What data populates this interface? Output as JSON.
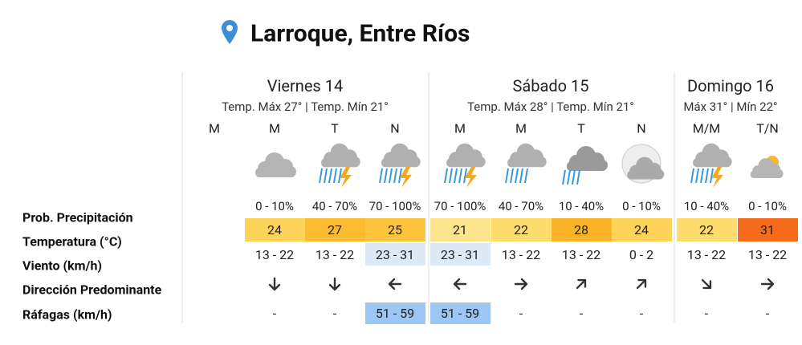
{
  "header": {
    "title": "Larroque, Entre Ríos"
  },
  "row_labels": [
    "Prob. Precipitación",
    "Temperatura (°C)",
    "Viento (km/h)",
    "Dirección Predominante",
    "Ráfagas (km/h)"
  ],
  "days": [
    {
      "title": "Viernes 14",
      "subtitle": "Temp. Máx 27° | Temp. Mín 21°",
      "periods": [
        {
          "label": "M"
        },
        {
          "label": "M",
          "precipitation": "0 - 10%",
          "temperature": 24,
          "wind": "13 - 22",
          "gusts": "-"
        },
        {
          "label": "T",
          "precipitation": "40 - 70%",
          "temperature": 27,
          "wind": "13 - 22",
          "gusts": "-"
        },
        {
          "label": "N",
          "precipitation": "70 - 100%",
          "temperature": 25,
          "wind": "23 - 31",
          "gusts": "51 - 59"
        }
      ]
    },
    {
      "title": "Sábado 15",
      "subtitle": "Temp. Máx 28° | Temp. Mín 21°",
      "periods": [
        {
          "label": "M",
          "precipitation": "70 - 100%",
          "temperature": 21,
          "wind": "23 - 31",
          "gusts": "51 - 59"
        },
        {
          "label": "M",
          "precipitation": "40 - 70%",
          "temperature": 22,
          "wind": "13 - 22",
          "gusts": "-"
        },
        {
          "label": "T",
          "precipitation": "10 - 40%",
          "temperature": 28,
          "wind": "13 - 22",
          "gusts": "-"
        },
        {
          "label": "N",
          "precipitation": "0 - 10%",
          "temperature": 24,
          "wind": "0 - 2",
          "gusts": "-"
        }
      ]
    },
    {
      "title": "Domingo 16",
      "subtitle": "Máx 31° | Mín 22°",
      "periods": [
        {
          "label": "M/M",
          "precipitation": "10 - 40%",
          "temperature": 22,
          "wind": "13 - 22",
          "gusts": "-"
        },
        {
          "label": "T/N",
          "precipitation": "0 - 10%",
          "temperature": 31,
          "wind": "13 - 22",
          "gusts": "-"
        }
      ]
    }
  ]
}
